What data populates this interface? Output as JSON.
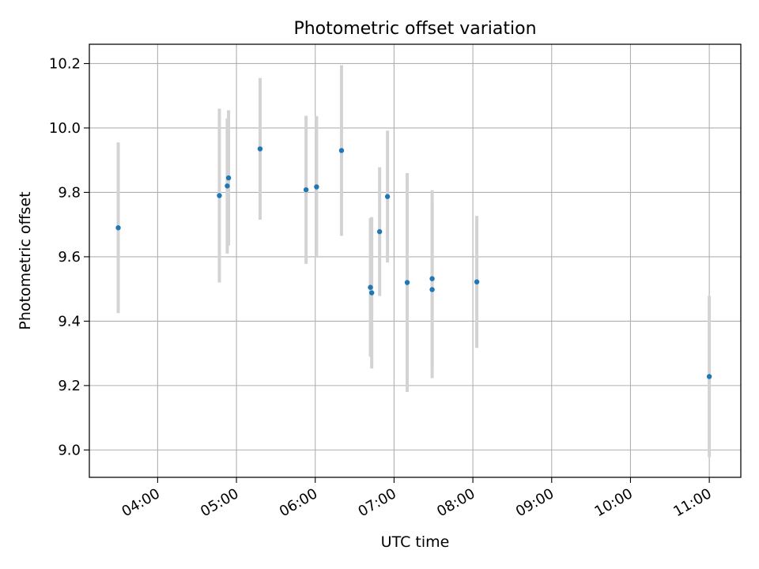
{
  "chart_data": {
    "type": "scatter",
    "title": "Photometric offset variation",
    "xlabel": "UTC time",
    "ylabel": "Photometric offset",
    "xlim": [
      "03:08",
      "11:24"
    ],
    "ylim": [
      8.915,
      10.26
    ],
    "grid": true,
    "x_ticks": [
      "04:00",
      "05:00",
      "06:00",
      "07:00",
      "08:00",
      "09:00",
      "10:00",
      "11:00"
    ],
    "y_ticks": [
      "9.0",
      "9.2",
      "9.4",
      "9.6",
      "9.8",
      "10.0",
      "10.2"
    ],
    "colors": {
      "point": "#1f77b4",
      "errorbar": "#d3d3d3",
      "grid": "#b0b0b0"
    },
    "series": [
      {
        "points": [
          {
            "x": "03:30",
            "y": 9.69,
            "yerr": 0.265
          },
          {
            "x": "04:47",
            "y": 9.79,
            "yerr": 0.27
          },
          {
            "x": "04:53",
            "y": 9.82,
            "yerr": 0.21
          },
          {
            "x": "04:54",
            "y": 9.845,
            "yerr": 0.21
          },
          {
            "x": "05:18",
            "y": 9.935,
            "yerr": 0.22
          },
          {
            "x": "05:53",
            "y": 9.808,
            "yerr": 0.23
          },
          {
            "x": "06:01",
            "y": 9.817,
            "yerr": 0.22
          },
          {
            "x": "06:20",
            "y": 9.93,
            "yerr": 0.265
          },
          {
            "x": "06:42",
            "y": 9.505,
            "yerr": 0.215
          },
          {
            "x": "06:43",
            "y": 9.488,
            "yerr": 0.235
          },
          {
            "x": "06:49",
            "y": 9.678,
            "yerr": 0.2
          },
          {
            "x": "06:55",
            "y": 9.787,
            "yerr": 0.205
          },
          {
            "x": "07:10",
            "y": 9.52,
            "yerr": 0.34
          },
          {
            "x": "07:29",
            "y": 9.532,
            "yerr": 0.275
          },
          {
            "x": "07:29",
            "y": 9.498,
            "yerr": 0.275
          },
          {
            "x": "08:03",
            "y": 9.522,
            "yerr": 0.205
          },
          {
            "x": "11:00",
            "y": 9.228,
            "yerr": 0.25
          }
        ]
      }
    ]
  }
}
